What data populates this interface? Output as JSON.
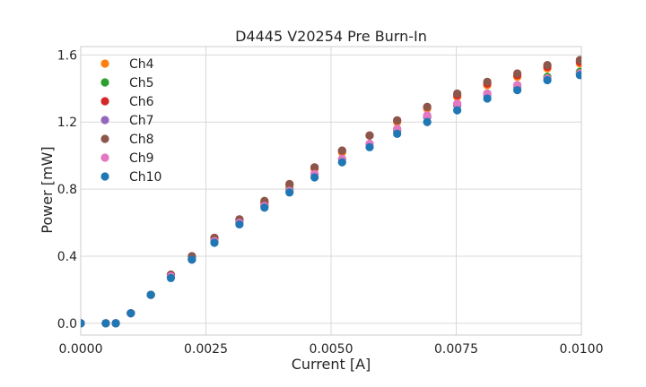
{
  "chart_data": {
    "type": "scatter",
    "title": "D4445 V20254 Pre Burn-In",
    "xlabel": "Current [A]",
    "ylabel": "Power [mW]",
    "xlim": [
      0.0,
      0.01
    ],
    "ylim": [
      -0.07,
      1.65
    ],
    "x_ticks": [
      0.0,
      0.0025,
      0.005,
      0.0075,
      0.01
    ],
    "x_tick_labels": [
      "0.0000",
      "0.0025",
      "0.0050",
      "0.0075",
      "0.0100"
    ],
    "y_ticks": [
      0.0,
      0.4,
      0.8,
      1.2,
      1.6
    ],
    "y_tick_labels": [
      "0.0",
      "0.4",
      "0.8",
      "1.2",
      "1.6"
    ],
    "grid": true,
    "legend_position": "top-left",
    "x": [
      0.0,
      0.0005,
      0.0007,
      0.001,
      0.0014,
      0.0018,
      0.00222,
      0.00267,
      0.00317,
      0.00367,
      0.00417,
      0.00467,
      0.00522,
      0.00577,
      0.00632,
      0.00692,
      0.00752,
      0.00812,
      0.00872,
      0.00932,
      0.00997
    ],
    "series": [
      {
        "name": "Ch4",
        "color": "#ff7f0e",
        "values": [
          0.0,
          0.0,
          0.0,
          0.06,
          0.17,
          0.28,
          0.39,
          0.5,
          0.61,
          0.71,
          0.82,
          0.92,
          1.02,
          1.12,
          1.2,
          1.28,
          1.35,
          1.42,
          1.47,
          1.52,
          1.55
        ]
      },
      {
        "name": "Ch5",
        "color": "#2ca02c",
        "values": [
          0.0,
          0.0,
          0.0,
          0.06,
          0.17,
          0.28,
          0.38,
          0.49,
          0.6,
          0.7,
          0.8,
          0.89,
          0.98,
          1.07,
          1.15,
          1.23,
          1.3,
          1.37,
          1.42,
          1.47,
          1.5
        ]
      },
      {
        "name": "Ch6",
        "color": "#d62728",
        "values": [
          0.0,
          0.0,
          0.0,
          0.06,
          0.17,
          0.29,
          0.4,
          0.51,
          0.62,
          0.72,
          0.83,
          0.93,
          1.03,
          1.12,
          1.21,
          1.29,
          1.36,
          1.43,
          1.48,
          1.53,
          1.56
        ]
      },
      {
        "name": "Ch7",
        "color": "#9467bd",
        "values": [
          0.0,
          0.0,
          0.0,
          0.06,
          0.17,
          0.28,
          0.38,
          0.49,
          0.6,
          0.7,
          0.79,
          0.89,
          0.98,
          1.07,
          1.15,
          1.23,
          1.3,
          1.36,
          1.41,
          1.46,
          1.49
        ]
      },
      {
        "name": "Ch8",
        "color": "#8c564b",
        "values": [
          0.0,
          0.0,
          0.0,
          0.06,
          0.17,
          0.29,
          0.4,
          0.51,
          0.62,
          0.73,
          0.83,
          0.93,
          1.03,
          1.12,
          1.21,
          1.29,
          1.37,
          1.44,
          1.49,
          1.54,
          1.57
        ]
      },
      {
        "name": "Ch9",
        "color": "#e377c2",
        "values": [
          0.0,
          0.0,
          0.0,
          0.06,
          0.17,
          0.28,
          0.38,
          0.49,
          0.6,
          0.7,
          0.79,
          0.89,
          0.98,
          1.07,
          1.16,
          1.24,
          1.31,
          1.37,
          1.42,
          1.46,
          1.49
        ]
      },
      {
        "name": "Ch10",
        "color": "#1f77b4",
        "values": [
          0.0,
          0.0,
          0.0,
          0.06,
          0.17,
          0.27,
          0.38,
          0.48,
          0.59,
          0.69,
          0.78,
          0.87,
          0.96,
          1.05,
          1.13,
          1.2,
          1.27,
          1.34,
          1.39,
          1.45,
          1.48
        ]
      }
    ]
  }
}
